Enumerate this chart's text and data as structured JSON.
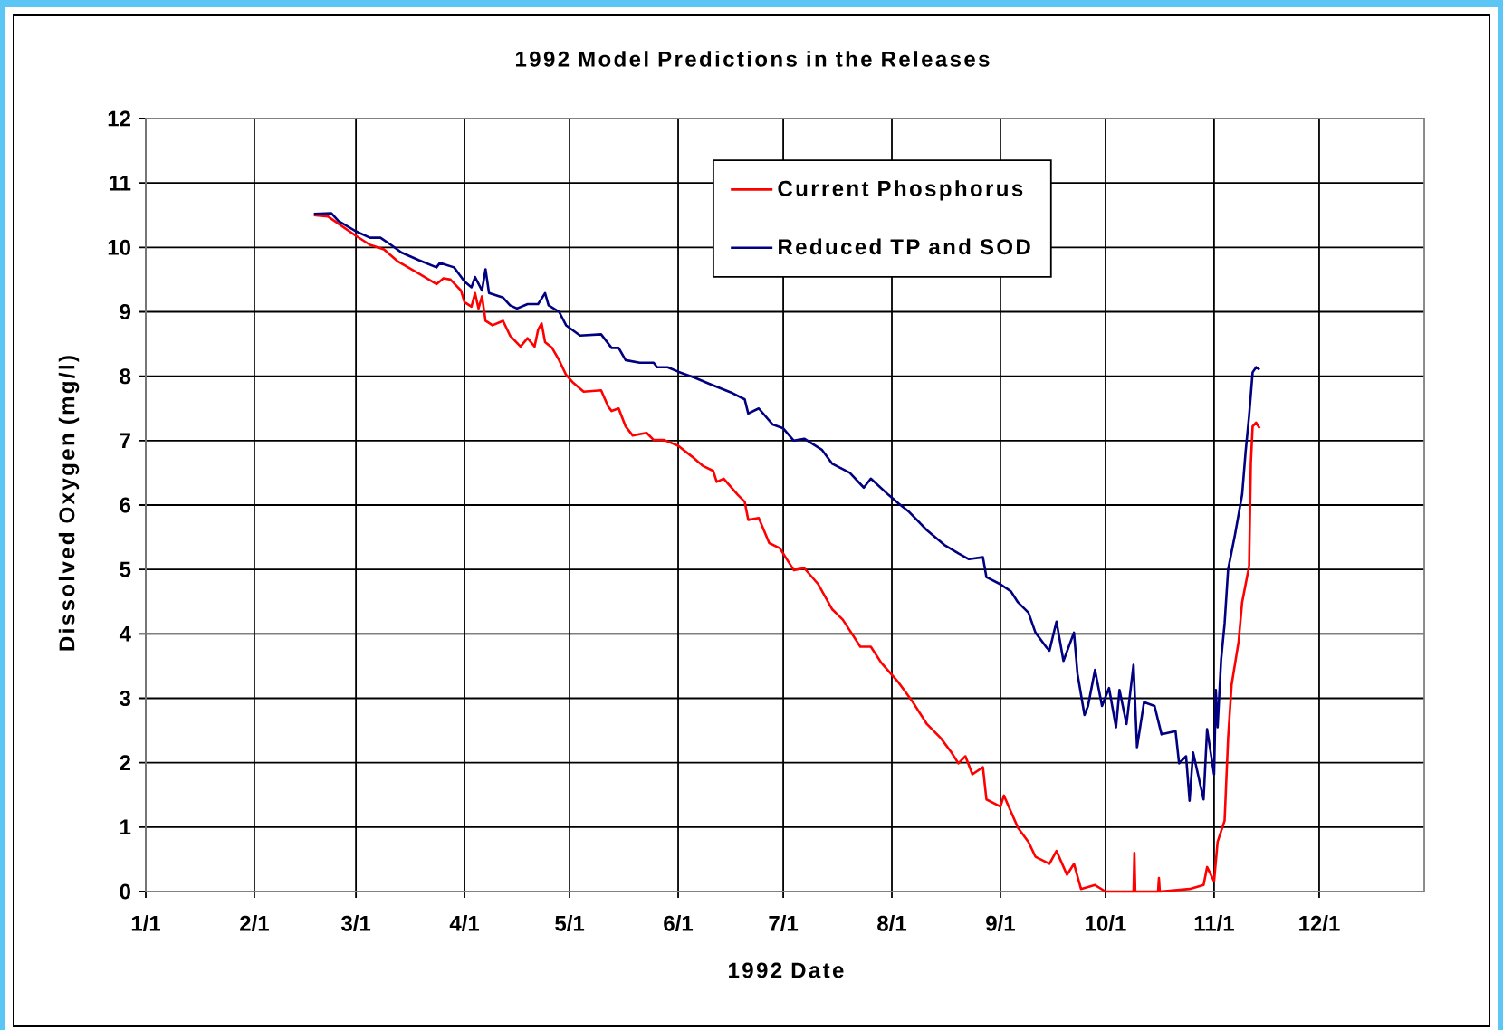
{
  "chart_data": {
    "type": "line",
    "title": "1992 Model Predictions in the Releases",
    "xlabel": "1992 Date",
    "ylabel": "Dissolved Oxygen (mg/l)",
    "series": [
      {
        "name": "Current Phosphorus",
        "color": "#ff0000",
        "x": [
          "1992-02-18",
          "1992-02-22",
          "1992-03-01",
          "1992-03-05",
          "1992-03-09",
          "1992-03-13",
          "1992-03-19",
          "1992-03-24",
          "1992-03-26",
          "1992-03-28",
          "1992-03-31",
          "1992-04-01",
          "1992-04-03",
          "1992-04-04",
          "1992-04-05",
          "1992-04-06",
          "1992-04-07",
          "1992-04-09",
          "1992-04-12",
          "1992-04-14",
          "1992-04-17",
          "1992-04-19",
          "1992-04-21",
          "1992-04-22",
          "1992-04-23",
          "1992-04-24",
          "1992-04-26",
          "1992-04-28",
          "1992-04-30",
          "1992-05-02",
          "1992-05-05",
          "1992-05-10",
          "1992-05-12",
          "1992-05-13",
          "1992-05-15",
          "1992-05-17",
          "1992-05-19",
          "1992-05-23",
          "1992-05-25",
          "1992-05-28",
          "1992-06-01",
          "1992-06-05",
          "1992-06-08",
          "1992-06-11",
          "1992-06-12",
          "1992-06-14",
          "1992-06-18",
          "1992-06-20",
          "1992-06-21",
          "1992-06-24",
          "1992-06-27",
          "1992-06-30",
          "1992-07-04",
          "1992-07-07",
          "1992-07-11",
          "1992-07-15",
          "1992-07-18",
          "1992-07-23",
          "1992-07-26",
          "1992-07-29",
          "1992-08-03",
          "1992-08-07",
          "1992-08-11",
          "1992-08-15",
          "1992-08-18",
          "1992-08-20",
          "1992-08-22",
          "1992-08-24",
          "1992-08-27",
          "1992-08-28",
          "1992-09-01",
          "1992-09-02",
          "1992-09-06",
          "1992-09-09",
          "1992-09-11",
          "1992-09-15",
          "1992-09-17",
          "1992-09-20",
          "1992-09-22",
          "1992-09-24",
          "1992-09-28",
          "1992-10-01",
          "1992-10-09T00:00",
          "1992-10-09T06:00",
          "1992-10-09T12:00",
          "1992-10-16T00:00",
          "1992-10-16T06:00",
          "1992-10-16T12:00",
          "1992-10-25",
          "1992-10-29",
          "1992-10-30",
          "1992-11-01",
          "1992-11-02",
          "1992-11-04",
          "1992-11-05",
          "1992-11-06",
          "1992-11-08",
          "1992-11-09",
          "1992-11-11T00:00",
          "1992-11-11T12:00",
          "1992-11-12",
          "1992-11-13",
          "1992-11-14"
        ],
        "values": [
          10.5,
          10.48,
          10.18,
          10.04,
          9.97,
          9.78,
          9.59,
          9.43,
          9.52,
          9.5,
          9.33,
          9.15,
          9.08,
          9.29,
          9.05,
          9.24,
          8.86,
          8.79,
          8.86,
          8.63,
          8.46,
          8.59,
          8.46,
          8.72,
          8.82,
          8.53,
          8.44,
          8.25,
          8.02,
          7.9,
          7.76,
          7.78,
          7.53,
          7.46,
          7.5,
          7.22,
          7.08,
          7.12,
          7.01,
          7.01,
          6.92,
          6.75,
          6.61,
          6.53,
          6.36,
          6.41,
          6.16,
          6.05,
          5.77,
          5.8,
          5.41,
          5.33,
          4.99,
          5.02,
          4.77,
          4.38,
          4.22,
          3.8,
          3.8,
          3.55,
          3.24,
          2.94,
          2.6,
          2.38,
          2.16,
          1.99,
          2.1,
          1.82,
          1.93,
          1.43,
          1.32,
          1.49,
          0.99,
          0.77,
          0.54,
          0.43,
          0.63,
          0.26,
          0.43,
          0.04,
          0.1,
          0,
          0,
          0.6,
          0,
          0,
          0.21,
          0,
          0.04,
          0.1,
          0.38,
          0.16,
          0.77,
          1.1,
          2.38,
          3.21,
          3.88,
          4.49,
          5.05,
          6.66,
          7.22,
          7.28,
          7.19
        ]
      },
      {
        "name": "Reduced TP and SOD",
        "color": "#000080",
        "x": [
          "1992-02-18",
          "1992-02-23",
          "1992-02-25",
          "1992-03-01",
          "1992-03-05",
          "1992-03-08",
          "1992-03-11",
          "1992-03-14",
          "1992-03-19",
          "1992-03-24",
          "1992-03-25",
          "1992-03-29",
          "1992-04-01",
          "1992-04-03",
          "1992-04-04",
          "1992-04-06",
          "1992-04-07",
          "1992-04-08",
          "1992-04-12",
          "1992-04-14",
          "1992-04-16",
          "1992-04-19",
          "1992-04-22",
          "1992-04-24",
          "1992-04-25",
          "1992-04-28",
          "1992-04-30",
          "1992-05-04",
          "1992-05-10",
          "1992-05-13",
          "1992-05-15",
          "1992-05-17",
          "1992-05-21",
          "1992-05-25",
          "1992-05-26",
          "1992-05-29",
          "1992-06-01",
          "1992-06-06",
          "1992-06-10",
          "1992-06-16",
          "1992-06-20",
          "1992-06-21",
          "1992-06-24",
          "1992-06-28",
          "1992-07-01",
          "1992-07-04",
          "1992-07-07",
          "1992-07-12",
          "1992-07-15",
          "1992-07-20",
          "1992-07-24",
          "1992-07-26",
          "1992-07-31",
          "1992-08-03",
          "1992-08-06",
          "1992-08-11",
          "1992-08-16",
          "1992-08-20",
          "1992-08-23",
          "1992-08-27",
          "1992-08-28",
          "1992-09-01",
          "1992-09-04",
          "1992-09-06",
          "1992-09-09",
          "1992-09-11",
          "1992-09-14",
          "1992-09-15",
          "1992-09-17",
          "1992-09-19",
          "1992-09-22",
          "1992-09-23",
          "1992-09-25",
          "1992-09-26",
          "1992-09-28",
          "1992-09-30",
          "1992-10-02",
          "1992-10-04",
          "1992-10-05",
          "1992-10-07",
          "1992-10-09",
          "1992-10-10",
          "1992-10-12",
          "1992-10-15",
          "1992-10-17",
          "1992-10-21",
          "1992-10-22",
          "1992-10-24",
          "1992-10-25",
          "1992-10-26",
          "1992-10-29",
          "1992-10-30",
          "1992-11-01T00:00",
          "1992-11-01T12:00",
          "1992-11-02",
          "1992-11-03",
          "1992-11-04",
          "1992-11-05",
          "1992-11-07",
          "1992-11-09",
          "1992-11-10",
          "1992-11-11",
          "1992-11-12",
          "1992-11-13",
          "1992-11-14"
        ],
        "values": [
          10.52,
          10.53,
          10.41,
          10.25,
          10.15,
          10.15,
          10.04,
          9.92,
          9.8,
          9.69,
          9.76,
          9.69,
          9.47,
          9.38,
          9.54,
          9.33,
          9.66,
          9.29,
          9.22,
          9.1,
          9.05,
          9.12,
          9.12,
          9.29,
          9.1,
          9.0,
          8.79,
          8.63,
          8.65,
          8.44,
          8.44,
          8.25,
          8.21,
          8.21,
          8.14,
          8.14,
          8.07,
          7.97,
          7.88,
          7.75,
          7.64,
          7.42,
          7.5,
          7.25,
          7.19,
          7.0,
          7.03,
          6.86,
          6.64,
          6.5,
          6.27,
          6.41,
          6.16,
          6.02,
          5.89,
          5.61,
          5.38,
          5.25,
          5.16,
          5.19,
          4.88,
          4.77,
          4.66,
          4.49,
          4.33,
          4.02,
          3.8,
          3.74,
          4.19,
          3.58,
          4.02,
          3.38,
          2.74,
          2.88,
          3.44,
          2.88,
          3.16,
          2.55,
          3.13,
          2.6,
          3.52,
          2.24,
          2.94,
          2.88,
          2.44,
          2.49,
          1.99,
          2.1,
          1.41,
          2.16,
          1.43,
          2.52,
          1.82,
          3.13,
          2.55,
          3.6,
          4.16,
          5.0,
          5.55,
          6.16,
          6.83,
          7.39,
          8.06,
          8.14,
          8.1
        ]
      }
    ],
    "xlim": [
      "1992-01-01",
      "1992-12-31"
    ],
    "ylim": [
      0,
      12
    ],
    "xticks": [
      {
        "value": "1992-01-01",
        "label": "1/1"
      },
      {
        "value": "1992-02-01",
        "label": "2/1"
      },
      {
        "value": "1992-03-01",
        "label": "3/1"
      },
      {
        "value": "1992-04-01",
        "label": "4/1"
      },
      {
        "value": "1992-05-01",
        "label": "5/1"
      },
      {
        "value": "1992-06-01",
        "label": "6/1"
      },
      {
        "value": "1992-07-01",
        "label": "7/1"
      },
      {
        "value": "1992-08-01",
        "label": "8/1"
      },
      {
        "value": "1992-09-01",
        "label": "9/1"
      },
      {
        "value": "1992-10-01",
        "label": "10/1"
      },
      {
        "value": "1992-11-01",
        "label": "11/1"
      },
      {
        "value": "1992-12-01",
        "label": "12/1"
      }
    ],
    "yticks": [
      0,
      1,
      2,
      3,
      4,
      5,
      6,
      7,
      8,
      9,
      10,
      11,
      12
    ],
    "grid": true,
    "legend": "top"
  }
}
